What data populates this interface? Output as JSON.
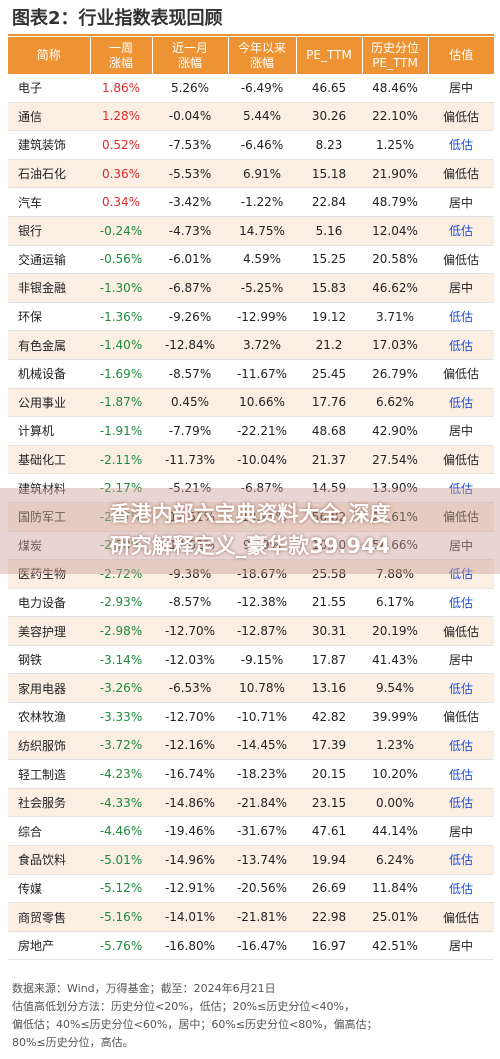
{
  "title": "图表2：行业指数表现回顾",
  "headers": [
    "简称",
    "一周\n涨幅",
    "近一月\n涨幅",
    "今年以来\n涨幅",
    "PE_TTM",
    "历史分位\nPE_TTM",
    "估值"
  ],
  "rows": [
    [
      "电子",
      "1.86%",
      "5.26%",
      "-6.49%",
      "46.65",
      "48.46%",
      "居中"
    ],
    [
      "通信",
      "1.28%",
      "-0.04%",
      "5.44%",
      "30.26",
      "22.10%",
      "偏低估"
    ],
    [
      "建筑装饰",
      "0.52%",
      "-7.53%",
      "-6.46%",
      "8.23",
      "1.25%",
      "低估"
    ],
    [
      "石油石化",
      "0.36%",
      "-5.53%",
      "6.91%",
      "15.18",
      "21.90%",
      "偏低估"
    ],
    [
      "汽车",
      "0.34%",
      "-3.42%",
      "-1.22%",
      "22.84",
      "48.79%",
      "居中"
    ],
    [
      "银行",
      "-0.24%",
      "-4.73%",
      "14.75%",
      "5.16",
      "12.04%",
      "低估"
    ],
    [
      "交通运输",
      "-0.56%",
      "-6.01%",
      "4.59%",
      "15.25",
      "20.58%",
      "偏低估"
    ],
    [
      "非银金融",
      "-1.30%",
      "-6.87%",
      "-5.25%",
      "15.83",
      "46.62%",
      "居中"
    ],
    [
      "环保",
      "-1.36%",
      "-9.26%",
      "-12.99%",
      "19.12",
      "3.71%",
      "低估"
    ],
    [
      "有色金属",
      "-1.40%",
      "-12.84%",
      "3.72%",
      "21.2",
      "17.03%",
      "低估"
    ],
    [
      "机械设备",
      "-1.69%",
      "-8.57%",
      "-11.67%",
      "25.45",
      "26.79%",
      "偏低估"
    ],
    [
      "公用事业",
      "-1.87%",
      "0.45%",
      "10.66%",
      "17.76",
      "6.62%",
      "低估"
    ],
    [
      "计算机",
      "-1.91%",
      "-7.79%",
      "-22.21%",
      "48.68",
      "42.90%",
      "居中"
    ],
    [
      "基础化工",
      "-2.11%",
      "-11.73%",
      "-10.04%",
      "21.37",
      "27.54%",
      "偏低估"
    ],
    [
      "建筑材料",
      "-2.17%",
      "-5.21%",
      "-6.87%",
      "14.59",
      "13.90%",
      "低估"
    ],
    [
      "国防军工",
      "-2.37%",
      "-12.51%",
      "-13.95%",
      "56.82",
      "23.61%",
      "偏低估"
    ],
    [
      "煤炭",
      "-2.50%",
      "-10.62%",
      "9.89%",
      "10.20",
      "58.66%",
      "居中"
    ],
    [
      "医药生物",
      "-2.72%",
      "-9.38%",
      "-18.67%",
      "25.58",
      "7.88%",
      "低估"
    ],
    [
      "电力设备",
      "-2.93%",
      "-8.57%",
      "-12.38%",
      "21.55",
      "6.17%",
      "低估"
    ],
    [
      "美容护理",
      "-2.98%",
      "-12.70%",
      "-12.87%",
      "30.31",
      "20.19%",
      "偏低估"
    ],
    [
      "钢铁",
      "-3.14%",
      "-12.03%",
      "-9.15%",
      "17.87",
      "41.43%",
      "居中"
    ],
    [
      "家用电器",
      "-3.26%",
      "-6.53%",
      "10.78%",
      "13.16",
      "9.54%",
      "低估"
    ],
    [
      "农林牧渔",
      "-3.33%",
      "-12.70%",
      "-10.71%",
      "42.82",
      "39.99%",
      "偏低估"
    ],
    [
      "纺织服饰",
      "-3.72%",
      "-12.16%",
      "-14.45%",
      "17.39",
      "1.23%",
      "低估"
    ],
    [
      "轻工制造",
      "-4.23%",
      "-16.74%",
      "-18.23%",
      "20.15",
      "10.20%",
      "低估"
    ],
    [
      "社会服务",
      "-4.33%",
      "-14.86%",
      "-21.84%",
      "23.15",
      "0.00%",
      "低估"
    ],
    [
      "综合",
      "-4.46%",
      "-19.46%",
      "-31.67%",
      "47.61",
      "44.14%",
      "居中"
    ],
    [
      "食品饮料",
      "-5.01%",
      "-14.96%",
      "-13.74%",
      "19.94",
      "6.24%",
      "低估"
    ],
    [
      "传媒",
      "-5.12%",
      "-12.91%",
      "-20.56%",
      "26.69",
      "11.84%",
      "低估"
    ],
    [
      "商贸零售",
      "-5.16%",
      "-14.01%",
      "-21.81%",
      "22.98",
      "25.01%",
      "偏低估"
    ],
    [
      "房地产",
      "-5.76%",
      "-16.80%",
      "-16.47%",
      "16.97",
      "42.51%",
      "居中"
    ]
  ],
  "notes": [
    "数据来源：Wind，万得基金；截至：2024年6月21日",
    "估值高低划分方法：历史分位<20%，低估；20%≤历史分位<40%，",
    "偏低估；40%≤历史分位<60%，居中；60%≤历史分位<80%，偏高估；",
    "80%≤历史分位，高估。"
  ],
  "watermark": [
    "香港内部六宝典资料大全,深度",
    "研究解释定义_豪华款39.944"
  ],
  "colors": {
    "header": "#ee9334",
    "up": "#e02b2b",
    "down": "#1e8a3c",
    "low": "#1f4fd6"
  }
}
